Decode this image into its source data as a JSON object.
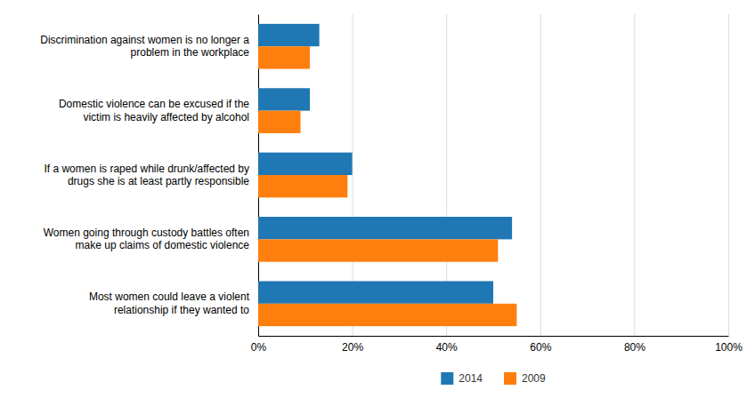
{
  "chart_data": {
    "type": "bar",
    "orientation": "horizontal",
    "categories": [
      "Discrimination against women is no longer a\nproblem in the workplace",
      "Domestic violence can be excused if the\nvictim is heavily affected by alcohol",
      "If a women is raped while drunk/affected by\ndrugs she is at least partly responsible",
      "Women going through custody battles often\nmake up claims of domestic violence",
      "Most women could leave a violent\nrelationship if they wanted to"
    ],
    "series": [
      {
        "name": "2014",
        "values": [
          0.13,
          0.11,
          0.2,
          0.54,
          0.5
        ]
      },
      {
        "name": "2009",
        "values": [
          0.11,
          0.09,
          0.19,
          0.51,
          0.55
        ]
      }
    ],
    "xlim": [
      0,
      1.0
    ],
    "xticks": [
      {
        "value": 0.0,
        "label": "0%"
      },
      {
        "value": 0.2,
        "label": "20%"
      },
      {
        "value": 0.4,
        "label": "40%"
      },
      {
        "value": 0.6,
        "label": "60%"
      },
      {
        "value": 0.8,
        "label": "80%"
      },
      {
        "value": 1.0,
        "label": "100%"
      }
    ],
    "grid": true,
    "legend": "bottom"
  }
}
